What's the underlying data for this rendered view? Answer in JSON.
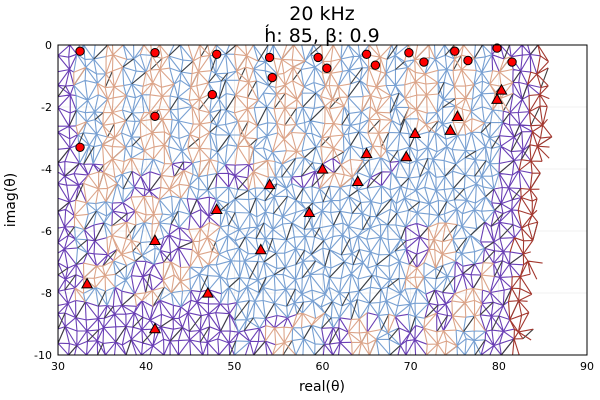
{
  "chart_data": {
    "type": "scatter",
    "title": "20 kHz",
    "subtitle": "h́: 85, β: 0.9",
    "xlabel": "real(θ)",
    "ylabel": "imag(θ)",
    "xlim": [
      30,
      90
    ],
    "ylim": [
      -10,
      0
    ],
    "xticks": [
      30,
      40,
      50,
      60,
      70,
      80,
      90
    ],
    "xtick_labels": [
      "30",
      "40",
      "50",
      "60",
      "70",
      "80",
      "90"
    ],
    "yticks": [
      0,
      -2,
      -4,
      -6,
      -8,
      -10
    ],
    "ytick_labels": [
      "0",
      "-2",
      "-4",
      "-6",
      "-8",
      "-10"
    ],
    "grid": true,
    "legend": "none",
    "mesh_colors": [
      "#6a3fb5",
      "#a3382f",
      "#dca58a",
      "#78a0d2",
      "#404040"
    ],
    "series": [
      {
        "marker": "circle",
        "color": "#ff0000",
        "x": [
          32.5,
          41,
          48,
          54,
          54.3,
          59.5,
          60.5,
          65,
          66,
          69.8,
          71.5,
          75,
          76.5,
          79.8,
          81.5,
          41,
          47.5,
          32.5
        ],
        "y": [
          -0.2,
          -0.25,
          -0.3,
          -0.4,
          -1.05,
          -0.4,
          -0.75,
          -0.3,
          -0.65,
          -0.25,
          -0.55,
          -0.2,
          -0.5,
          -0.1,
          -0.55,
          -2.3,
          -1.6,
          -3.3
        ]
      },
      {
        "marker": "triangle",
        "color": "#ff0000",
        "x": [
          33.3,
          41,
          47,
          48,
          53,
          54,
          58.5,
          60,
          64,
          65,
          69.5,
          70.5,
          74.5,
          75.3,
          79.8,
          80.3,
          41
        ],
        "y": [
          -7.7,
          -6.3,
          -8,
          -5.3,
          -6.6,
          -4.5,
          -5.4,
          -4.0,
          -4.4,
          -3.5,
          -3.6,
          -2.85,
          -2.75,
          -2.3,
          -1.75,
          -1.45,
          -9.15
        ]
      }
    ]
  }
}
